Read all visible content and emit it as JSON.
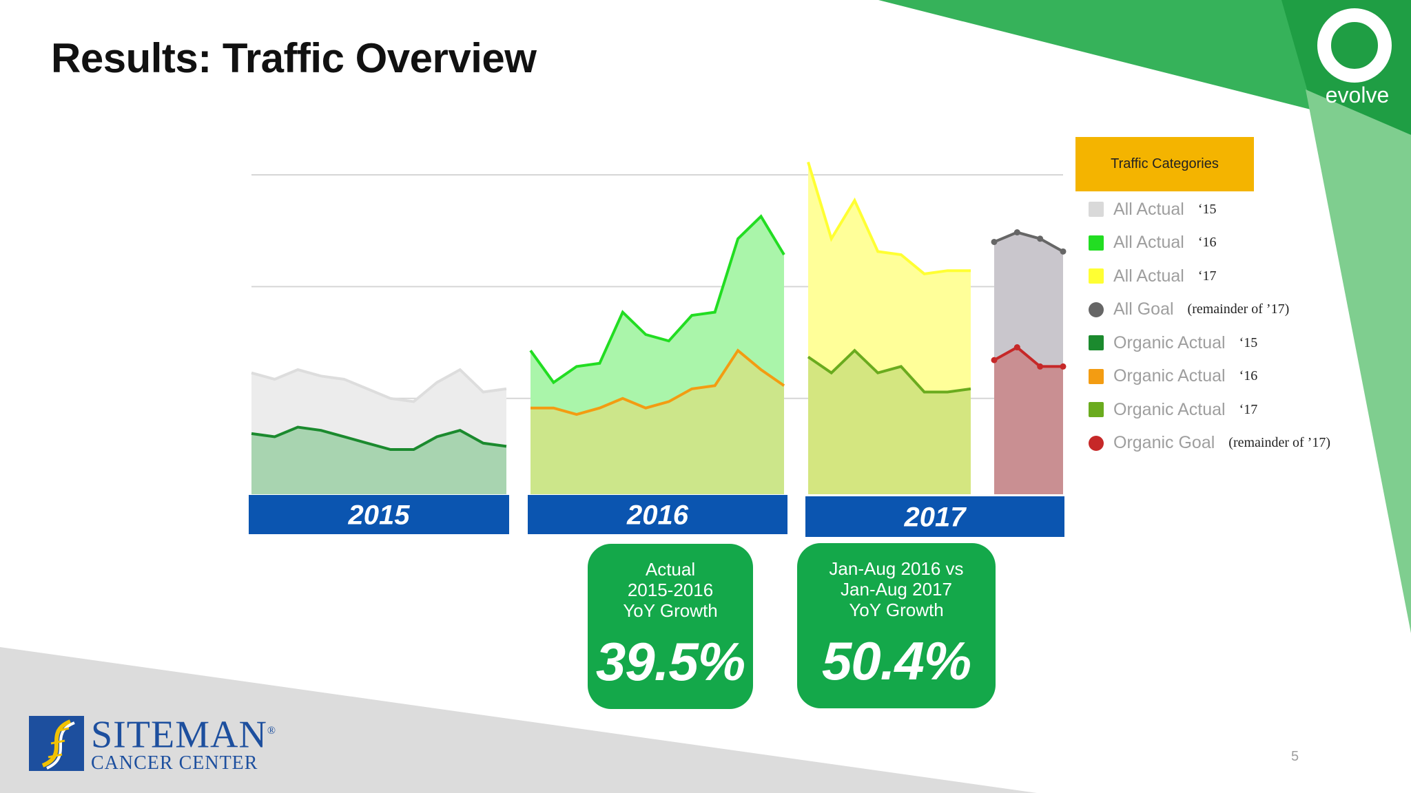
{
  "slide": {
    "title": "Results: Traffic Overview",
    "brand_logo_text": "evolve",
    "footer_logo_name": "SITEMAN",
    "footer_logo_registered": "®",
    "footer_logo_sub": "CANCER CENTER",
    "page_number": "5"
  },
  "colors": {
    "all_actual_15": "#e6e6e6",
    "all_actual_16": "#22dd22",
    "all_actual_17": "#ffff33",
    "all_goal": "#666666",
    "organic_actual_15": "#1b8a2e",
    "organic_actual_16": "#f39c12",
    "organic_actual_17": "#6aab1e",
    "organic_goal": "#c62828",
    "year_band": "#0b55b0",
    "stat_box": "#14a84a",
    "legend_header": "#f4b400"
  },
  "legend": {
    "title": "Traffic Categories",
    "items": [
      {
        "name": "All Actual",
        "suffix": "‘15",
        "color": "#d9d9d9",
        "shape": "square"
      },
      {
        "name": "All Actual",
        "suffix": "‘16",
        "color": "#22dd22",
        "shape": "square"
      },
      {
        "name": "All Actual",
        "suffix": "‘17",
        "color": "#ffff33",
        "shape": "square"
      },
      {
        "name": "All Goal",
        "suffix": "(remainder of ’17)",
        "color": "#666666",
        "shape": "circle"
      },
      {
        "name": "Organic Actual",
        "suffix": "‘15",
        "color": "#1b8a2e",
        "shape": "square"
      },
      {
        "name": "Organic Actual",
        "suffix": "‘16",
        "color": "#f39c12",
        "shape": "square"
      },
      {
        "name": "Organic Actual",
        "suffix": "‘17",
        "color": "#6aab1e",
        "shape": "square"
      },
      {
        "name": "Organic Goal",
        "suffix": "(remainder of ’17)",
        "color": "#c62828",
        "shape": "circle"
      }
    ]
  },
  "stats": [
    {
      "label_lines": [
        "Actual",
        "2015-2016",
        "YoY Growth"
      ],
      "value": "39.5%"
    },
    {
      "label_lines": [
        "Jan-Aug 2016 vs",
        "Jan-Aug 2017",
        "YoY Growth"
      ],
      "value": "50.4%"
    }
  ],
  "chart_data": {
    "type": "area",
    "title": "",
    "xlabel": "",
    "ylabel": "",
    "ylim": [
      0,
      100
    ],
    "grid": true,
    "legend_placement": "right",
    "groups": [
      {
        "year": "2015",
        "series": [
          {
            "legend_index": 0,
            "kind": "all",
            "values": [
              38,
              36,
              39,
              37,
              36,
              33,
              30,
              29,
              35,
              39,
              32,
              33
            ]
          },
          {
            "legend_index": 4,
            "kind": "organic",
            "values": [
              19,
              18,
              21,
              20,
              18,
              16,
              14,
              14,
              18,
              20,
              16,
              15
            ]
          }
        ]
      },
      {
        "year": "2016",
        "series": [
          {
            "legend_index": 1,
            "kind": "all",
            "values": [
              45,
              35,
              40,
              41,
              57,
              50,
              48,
              56,
              57,
              80,
              87,
              75
            ]
          },
          {
            "legend_index": 5,
            "kind": "organic",
            "values": [
              27,
              27,
              25,
              27,
              30,
              27,
              29,
              33,
              34,
              45,
              39,
              34
            ]
          }
        ]
      },
      {
        "year": "2017",
        "series": [
          {
            "legend_index": 2,
            "kind": "all",
            "values": [
              104,
              80,
              92,
              76,
              75,
              69,
              70,
              70
            ]
          },
          {
            "legend_index": 6,
            "kind": "organic",
            "values": [
              43,
              38,
              45,
              38,
              40,
              32,
              32,
              33
            ]
          }
        ]
      },
      {
        "year": "2017",
        "is_goal": true,
        "series": [
          {
            "legend_index": 3,
            "kind": "all",
            "values": [
              79,
              82,
              80,
              76
            ]
          },
          {
            "legend_index": 7,
            "kind": "organic",
            "values": [
              42,
              46,
              40,
              40
            ]
          }
        ]
      }
    ]
  }
}
